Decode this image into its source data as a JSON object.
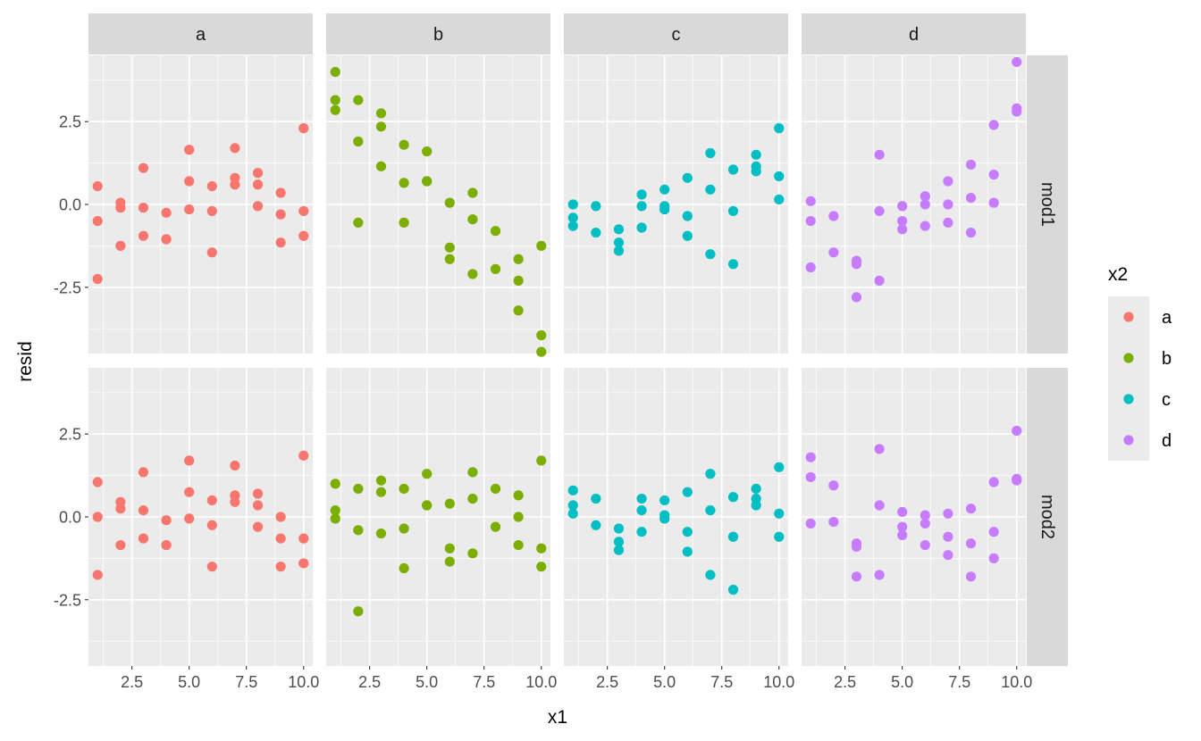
{
  "chart_data": {
    "type": "scatter",
    "layout": "facet_grid",
    "xlabel": "x1",
    "ylabel": "resid",
    "xlim": [
      0.6,
      10.4
    ],
    "ylim": [
      -4.5,
      4.5
    ],
    "x_ticks": [
      2.5,
      5.0,
      7.5,
      10.0
    ],
    "x_tick_labels": [
      "2.5",
      "5.0",
      "7.5",
      "10.0"
    ],
    "y_ticks": [
      -2.5,
      0.0,
      2.5
    ],
    "y_tick_labels": [
      "-2.5",
      "0.0",
      "2.5"
    ],
    "col_facets": [
      "a",
      "b",
      "c",
      "d"
    ],
    "row_facets": [
      "mod1",
      "mod2"
    ],
    "legend": {
      "title": "x2",
      "position": "right",
      "items": [
        {
          "label": "a",
          "color": "#F8766D"
        },
        {
          "label": "b",
          "color": "#7CAE00"
        },
        {
          "label": "c",
          "color": "#00BFC4"
        },
        {
          "label": "d",
          "color": "#C77CFF"
        }
      ]
    },
    "panels": [
      {
        "row": "mod1",
        "col": "a",
        "color": "#F8766D",
        "points": [
          [
            1,
            0.55
          ],
          [
            1,
            -0.5
          ],
          [
            1,
            -2.25
          ],
          [
            2,
            0.05
          ],
          [
            2,
            -0.1
          ],
          [
            2,
            -1.25
          ],
          [
            3,
            1.1
          ],
          [
            3,
            -0.1
          ],
          [
            3,
            -0.95
          ],
          [
            4,
            -0.25
          ],
          [
            4,
            -1.05
          ],
          [
            4,
            -1.05
          ],
          [
            5,
            1.65
          ],
          [
            5,
            0.7
          ],
          [
            5,
            -0.15
          ],
          [
            6,
            0.55
          ],
          [
            6,
            -0.2
          ],
          [
            6,
            -1.45
          ],
          [
            7,
            1.7
          ],
          [
            7,
            0.8
          ],
          [
            7,
            0.6
          ],
          [
            8,
            0.95
          ],
          [
            8,
            0.6
          ],
          [
            8,
            -0.05
          ],
          [
            9,
            0.35
          ],
          [
            9,
            -0.3
          ],
          [
            9,
            -1.15
          ],
          [
            10,
            2.3
          ],
          [
            10,
            -0.2
          ],
          [
            10,
            -0.95
          ]
        ]
      },
      {
        "row": "mod1",
        "col": "b",
        "color": "#7CAE00",
        "points": [
          [
            1,
            4.0
          ],
          [
            1,
            3.15
          ],
          [
            1,
            2.85
          ],
          [
            2,
            3.15
          ],
          [
            2,
            1.9
          ],
          [
            2,
            -0.55
          ],
          [
            3,
            2.75
          ],
          [
            3,
            2.35
          ],
          [
            3,
            1.15
          ],
          [
            4,
            1.8
          ],
          [
            4,
            0.65
          ],
          [
            4,
            -0.55
          ],
          [
            5,
            1.6
          ],
          [
            5,
            0.7
          ],
          [
            5,
            0.7
          ],
          [
            6,
            0.05
          ],
          [
            6,
            -1.3
          ],
          [
            6,
            -1.65
          ],
          [
            7,
            0.35
          ],
          [
            7,
            -0.45
          ],
          [
            7,
            -2.1
          ],
          [
            8,
            -0.8
          ],
          [
            8,
            -1.95
          ],
          [
            9,
            -1.65
          ],
          [
            9,
            -2.3
          ],
          [
            9,
            -3.2
          ],
          [
            10,
            -1.25
          ],
          [
            10,
            -3.95
          ],
          [
            10,
            -4.45
          ]
        ]
      },
      {
        "row": "mod1",
        "col": "c",
        "color": "#00BFC4",
        "points": [
          [
            1,
            0.0
          ],
          [
            1,
            -0.4
          ],
          [
            1,
            -0.65
          ],
          [
            2,
            -0.05
          ],
          [
            2,
            -0.85
          ],
          [
            3,
            -0.75
          ],
          [
            3,
            -1.15
          ],
          [
            3,
            -1.4
          ],
          [
            4,
            0.3
          ],
          [
            4,
            -0.05
          ],
          [
            4,
            -0.7
          ],
          [
            5,
            0.45
          ],
          [
            5,
            -0.05
          ],
          [
            5,
            -0.15
          ],
          [
            6,
            0.8
          ],
          [
            6,
            -0.35
          ],
          [
            6,
            -0.95
          ],
          [
            7,
            1.55
          ],
          [
            7,
            0.45
          ],
          [
            7,
            -1.5
          ],
          [
            8,
            1.05
          ],
          [
            8,
            -0.2
          ],
          [
            8,
            -1.8
          ],
          [
            9,
            1.5
          ],
          [
            9,
            1.15
          ],
          [
            9,
            1.0
          ],
          [
            10,
            2.3
          ],
          [
            10,
            0.85
          ],
          [
            10,
            0.15
          ]
        ]
      },
      {
        "row": "mod1",
        "col": "d",
        "color": "#C77CFF",
        "points": [
          [
            1,
            0.1
          ],
          [
            1,
            -0.5
          ],
          [
            1,
            -1.9
          ],
          [
            2,
            -0.35
          ],
          [
            2,
            -1.45
          ],
          [
            3,
            -1.7
          ],
          [
            3,
            -1.8
          ],
          [
            3,
            -2.8
          ],
          [
            4,
            1.5
          ],
          [
            4,
            -0.2
          ],
          [
            4,
            -2.3
          ],
          [
            5,
            -0.05
          ],
          [
            5,
            -0.5
          ],
          [
            5,
            -0.75
          ],
          [
            6,
            0.25
          ],
          [
            6,
            0.0
          ],
          [
            6,
            -0.65
          ],
          [
            7,
            0.7
          ],
          [
            7,
            0.0
          ],
          [
            7,
            -0.55
          ],
          [
            8,
            1.2
          ],
          [
            8,
            0.2
          ],
          [
            8,
            -0.85
          ],
          [
            9,
            2.4
          ],
          [
            9,
            0.9
          ],
          [
            9,
            0.05
          ],
          [
            10,
            4.3
          ],
          [
            10,
            2.9
          ],
          [
            10,
            2.8
          ]
        ]
      },
      {
        "row": "mod2",
        "col": "a",
        "color": "#F8766D",
        "points": [
          [
            1,
            1.05
          ],
          [
            1,
            0.0
          ],
          [
            1,
            -1.75
          ],
          [
            2,
            0.45
          ],
          [
            2,
            0.25
          ],
          [
            2,
            -0.85
          ],
          [
            3,
            1.35
          ],
          [
            3,
            0.2
          ],
          [
            3,
            -0.65
          ],
          [
            4,
            -0.1
          ],
          [
            4,
            -0.85
          ],
          [
            4,
            -0.85
          ],
          [
            5,
            1.7
          ],
          [
            5,
            0.75
          ],
          [
            5,
            -0.05
          ],
          [
            6,
            0.5
          ],
          [
            6,
            -0.25
          ],
          [
            6,
            -1.5
          ],
          [
            7,
            1.55
          ],
          [
            7,
            0.65
          ],
          [
            7,
            0.45
          ],
          [
            8,
            0.7
          ],
          [
            8,
            0.35
          ],
          [
            8,
            -0.3
          ],
          [
            9,
            0.0
          ],
          [
            9,
            -0.65
          ],
          [
            9,
            -1.5
          ],
          [
            10,
            1.85
          ],
          [
            10,
            -0.65
          ],
          [
            10,
            -1.4
          ]
        ]
      },
      {
        "row": "mod2",
        "col": "b",
        "color": "#7CAE00",
        "points": [
          [
            1,
            1.0
          ],
          [
            1,
            0.2
          ],
          [
            1,
            -0.05
          ],
          [
            2,
            0.85
          ],
          [
            2,
            -0.4
          ],
          [
            2,
            -2.85
          ],
          [
            3,
            1.1
          ],
          [
            3,
            0.75
          ],
          [
            3,
            -0.5
          ],
          [
            4,
            0.85
          ],
          [
            4,
            -0.35
          ],
          [
            4,
            -1.55
          ],
          [
            5,
            1.3
          ],
          [
            5,
            0.35
          ],
          [
            5,
            0.35
          ],
          [
            6,
            0.4
          ],
          [
            6,
            -0.95
          ],
          [
            6,
            -1.35
          ],
          [
            7,
            1.35
          ],
          [
            7,
            0.55
          ],
          [
            7,
            -1.1
          ],
          [
            8,
            0.85
          ],
          [
            8,
            -0.3
          ],
          [
            9,
            0.65
          ],
          [
            9,
            0.0
          ],
          [
            9,
            -0.85
          ],
          [
            10,
            1.7
          ],
          [
            10,
            -0.95
          ],
          [
            10,
            -1.5
          ]
        ]
      },
      {
        "row": "mod2",
        "col": "c",
        "color": "#00BFC4",
        "points": [
          [
            1,
            0.8
          ],
          [
            1,
            0.35
          ],
          [
            1,
            0.1
          ],
          [
            2,
            0.55
          ],
          [
            2,
            -0.25
          ],
          [
            3,
            -0.35
          ],
          [
            3,
            -0.75
          ],
          [
            3,
            -1.0
          ],
          [
            4,
            0.55
          ],
          [
            4,
            0.2
          ],
          [
            4,
            -0.45
          ],
          [
            5,
            0.5
          ],
          [
            5,
            0.05
          ],
          [
            5,
            -0.05
          ],
          [
            6,
            0.75
          ],
          [
            6,
            -0.45
          ],
          [
            6,
            -1.05
          ],
          [
            7,
            1.3
          ],
          [
            7,
            0.2
          ],
          [
            7,
            -1.75
          ],
          [
            8,
            0.6
          ],
          [
            8,
            -0.6
          ],
          [
            8,
            -2.2
          ],
          [
            9,
            0.85
          ],
          [
            9,
            0.55
          ],
          [
            9,
            0.35
          ],
          [
            10,
            1.5
          ],
          [
            10,
            0.1
          ],
          [
            10,
            -0.6
          ]
        ]
      },
      {
        "row": "mod2",
        "col": "d",
        "color": "#C77CFF",
        "points": [
          [
            1,
            1.8
          ],
          [
            1,
            1.2
          ],
          [
            1,
            -0.2
          ],
          [
            2,
            0.95
          ],
          [
            2,
            -0.15
          ],
          [
            3,
            -0.8
          ],
          [
            3,
            -0.9
          ],
          [
            3,
            -1.8
          ],
          [
            4,
            2.05
          ],
          [
            4,
            0.35
          ],
          [
            4,
            -1.75
          ],
          [
            5,
            0.15
          ],
          [
            5,
            -0.3
          ],
          [
            5,
            -0.55
          ],
          [
            6,
            0.05
          ],
          [
            6,
            -0.2
          ],
          [
            6,
            -0.85
          ],
          [
            7,
            0.1
          ],
          [
            7,
            -0.6
          ],
          [
            7,
            -1.15
          ],
          [
            8,
            0.25
          ],
          [
            8,
            -0.8
          ],
          [
            8,
            -1.8
          ],
          [
            9,
            1.05
          ],
          [
            9,
            -0.45
          ],
          [
            9,
            -1.25
          ],
          [
            10,
            2.6
          ],
          [
            10,
            1.15
          ],
          [
            10,
            1.1
          ]
        ]
      }
    ]
  }
}
